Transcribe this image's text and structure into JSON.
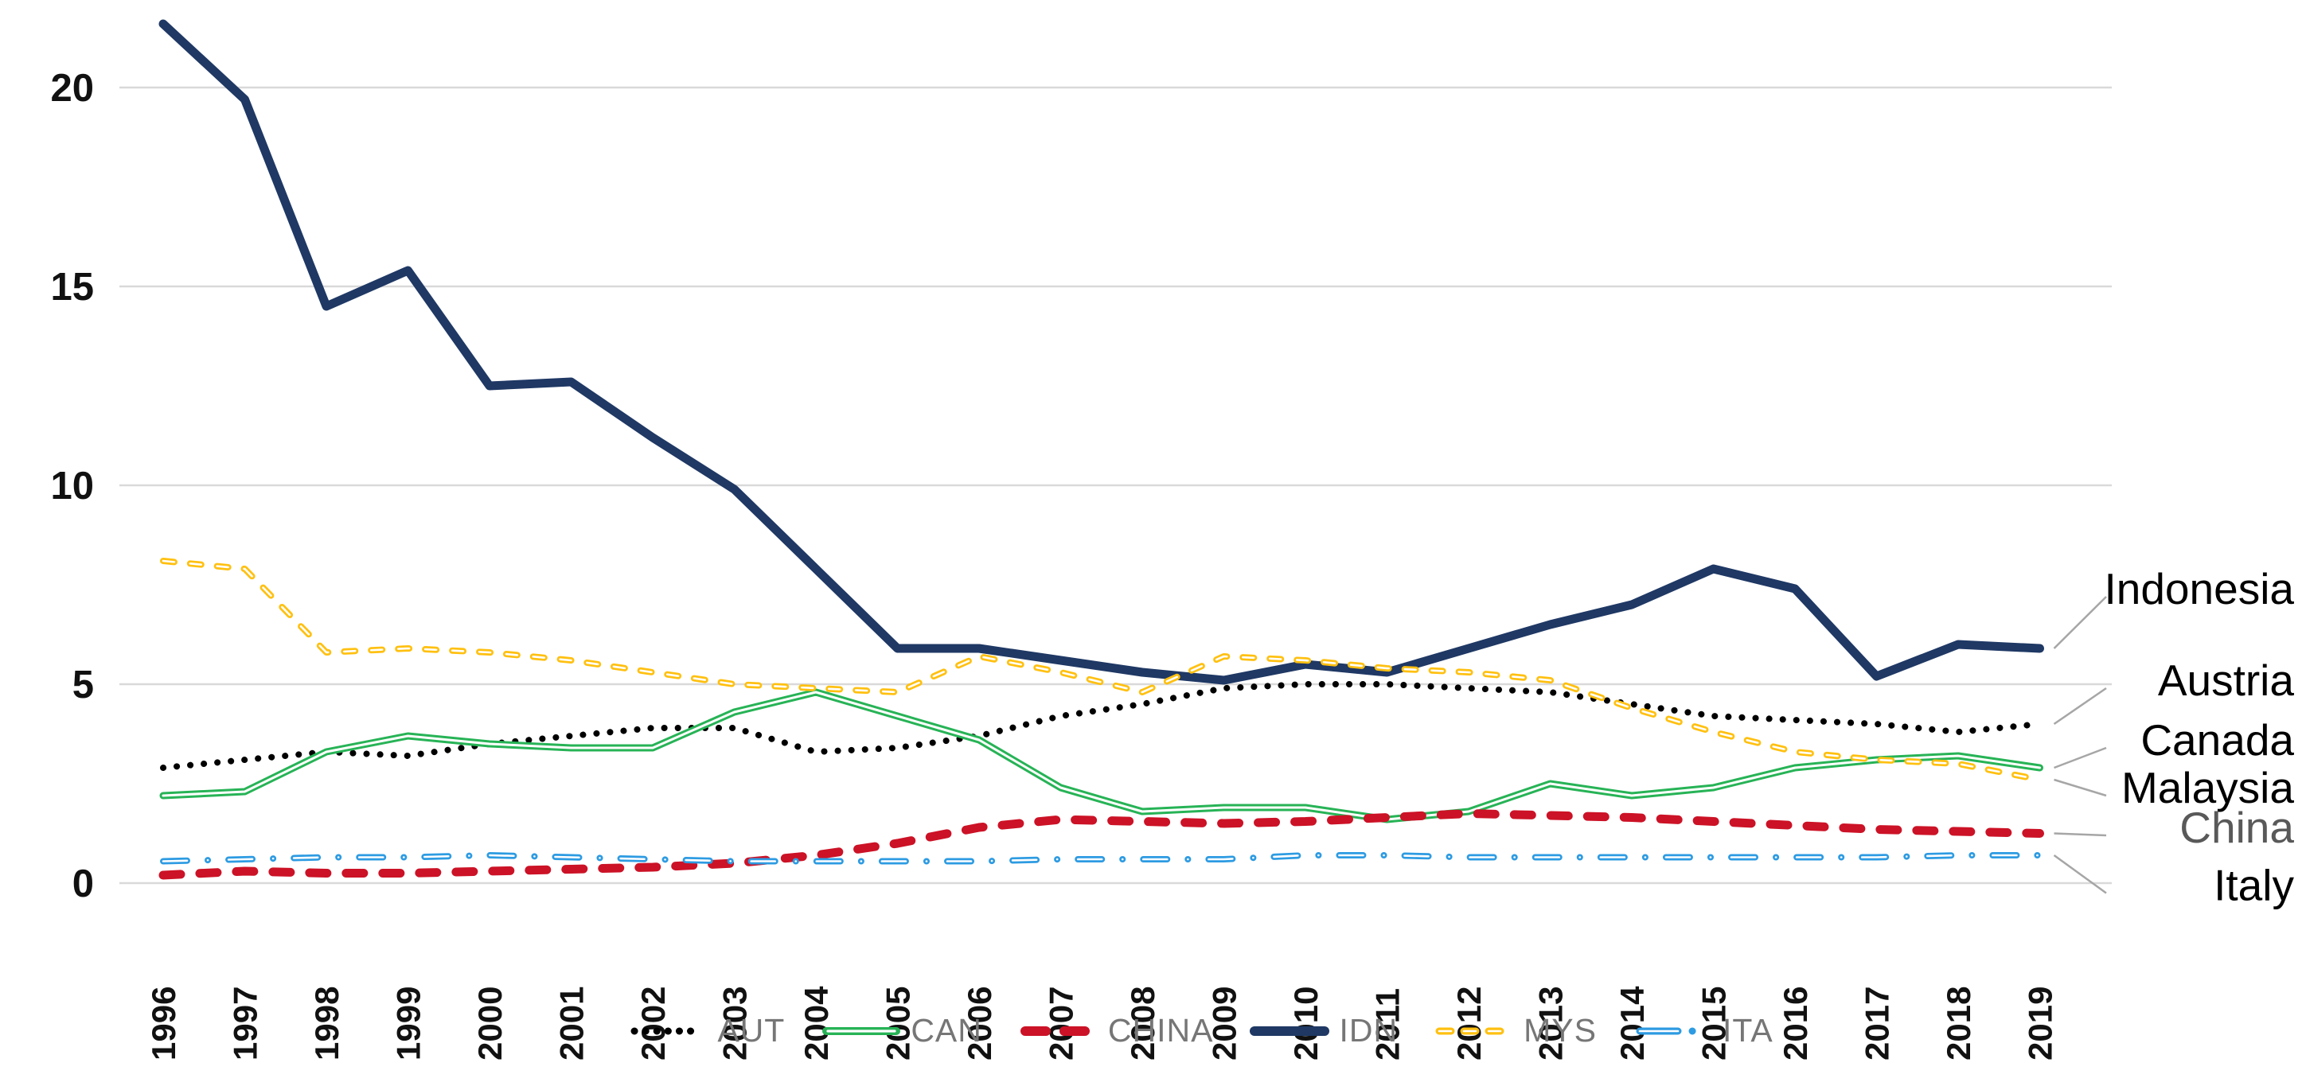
{
  "chart_data": {
    "type": "line",
    "title": "",
    "xlabel": "",
    "ylabel": "",
    "grid": true,
    "legend_position": "bottom",
    "yticks": [
      0,
      5,
      10,
      15,
      20
    ],
    "ylim": [
      0,
      22
    ],
    "x": [
      1996,
      1997,
      1998,
      1999,
      2000,
      2001,
      2002,
      2003,
      2004,
      2005,
      2006,
      2007,
      2008,
      2009,
      2010,
      2011,
      2012,
      2013,
      2014,
      2015,
      2016,
      2017,
      2018,
      2019
    ],
    "series": [
      {
        "id": "aut",
        "name": "AUT",
        "color": "#000000",
        "style": "dotted",
        "values": [
          2.9,
          3.1,
          3.3,
          3.2,
          3.5,
          3.7,
          3.9,
          3.9,
          3.3,
          3.4,
          3.7,
          4.2,
          4.5,
          4.9,
          5.0,
          5.0,
          4.9,
          4.8,
          4.5,
          4.2,
          4.1,
          4.0,
          3.8,
          4.0
        ]
      },
      {
        "id": "can",
        "name": "CAN",
        "color": "#27b356",
        "style": "solid-whitecore",
        "values": [
          2.2,
          2.3,
          3.3,
          3.7,
          3.5,
          3.4,
          3.4,
          4.3,
          4.8,
          4.2,
          3.6,
          2.4,
          1.8,
          1.9,
          1.9,
          1.6,
          1.8,
          2.5,
          2.2,
          2.4,
          2.9,
          3.1,
          3.2,
          2.9
        ]
      },
      {
        "id": "china",
        "name": "CHINA",
        "color": "#cc1226",
        "style": "dashed",
        "values": [
          0.2,
          0.3,
          0.25,
          0.25,
          0.3,
          0.35,
          0.4,
          0.5,
          0.7,
          1.0,
          1.4,
          1.6,
          1.55,
          1.5,
          1.55,
          1.65,
          1.75,
          1.7,
          1.65,
          1.55,
          1.45,
          1.35,
          1.3,
          1.25
        ]
      },
      {
        "id": "idn",
        "name": "IDN",
        "color": "#1f3864",
        "style": "solid",
        "values": [
          21.6,
          19.7,
          14.5,
          15.4,
          12.5,
          12.6,
          11.2,
          9.9,
          7.9,
          5.9,
          5.9,
          5.6,
          5.3,
          5.1,
          5.5,
          5.3,
          5.9,
          6.5,
          7.0,
          7.9,
          7.4,
          5.2,
          6.0,
          5.9
        ]
      },
      {
        "id": "mys",
        "name": "MYS",
        "color": "#ffc010",
        "style": "dashed-whitecore",
        "values": [
          8.1,
          7.9,
          5.8,
          5.9,
          5.8,
          5.6,
          5.3,
          5.0,
          4.9,
          4.8,
          5.7,
          5.3,
          4.8,
          5.7,
          5.6,
          5.4,
          5.3,
          5.1,
          4.4,
          3.8,
          3.3,
          3.1,
          3.0,
          2.6
        ]
      },
      {
        "id": "ita",
        "name": "ITA",
        "color": "#2d9be2",
        "style": "dashdot-whitecore",
        "values": [
          0.55,
          0.6,
          0.65,
          0.65,
          0.7,
          0.65,
          0.6,
          0.55,
          0.55,
          0.55,
          0.55,
          0.6,
          0.6,
          0.6,
          0.7,
          0.7,
          0.65,
          0.65,
          0.65,
          0.65,
          0.65,
          0.65,
          0.7,
          0.7
        ]
      }
    ],
    "annotations": [
      {
        "series": "idn",
        "label": "Indonesia",
        "color": "#000000",
        "value": 7.4
      },
      {
        "series": "aut",
        "label": "Austria",
        "color": "#000000",
        "value": 5.1
      },
      {
        "series": "can",
        "label": "Canada",
        "color": "#000000",
        "value": 3.6
      },
      {
        "series": "mys",
        "label": "Malaysia",
        "color": "#000000",
        "value": 2.4
      },
      {
        "series": "china",
        "label": "China",
        "color": "#595959",
        "value": 1.4
      },
      {
        "series": "ita",
        "label": "Italy",
        "color": "#000000",
        "value": -0.05
      }
    ]
  },
  "colors": {
    "grid": "#d9d9d9",
    "leader_line": "#a6a6a6",
    "legend_text": "#767676",
    "axis_text": "#111111",
    "background": "#ffffff"
  }
}
